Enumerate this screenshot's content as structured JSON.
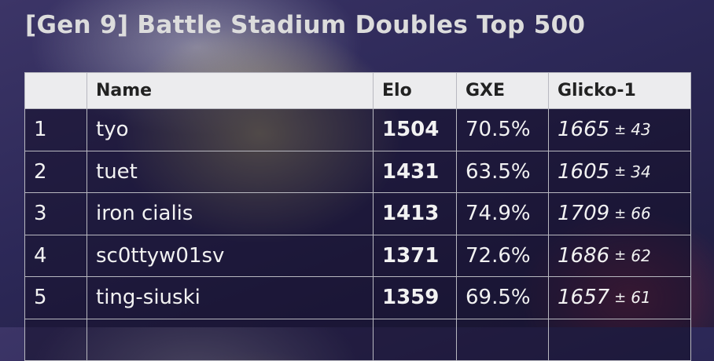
{
  "title": "[Gen 9] Battle Stadium Doubles Top 500",
  "table": {
    "header": [
      "Name",
      "Elo",
      "GXE",
      "Glicko-1"
    ],
    "pm": "±",
    "rows": [
      {
        "rank": 1,
        "name": "tyo",
        "elo": 1504,
        "gxe": "70.5%",
        "glicko": 1665,
        "deviation": 43
      },
      {
        "rank": 2,
        "name": "tuet",
        "elo": 1431,
        "gxe": "63.5%",
        "glicko": 1605,
        "deviation": 34
      },
      {
        "rank": 3,
        "name": "iron cialis",
        "elo": 1413,
        "gxe": "74.9%",
        "glicko": 1709,
        "deviation": 66
      },
      {
        "rank": 4,
        "name": "sc0ttyw01sv",
        "elo": 1371,
        "gxe": "72.6%",
        "glicko": 1686,
        "deviation": 62
      },
      {
        "rank": 5,
        "name": "ting-siuski",
        "elo": 1359,
        "gxe": "69.5%",
        "glicko": 1657,
        "deviation": 61
      }
    ]
  }
}
